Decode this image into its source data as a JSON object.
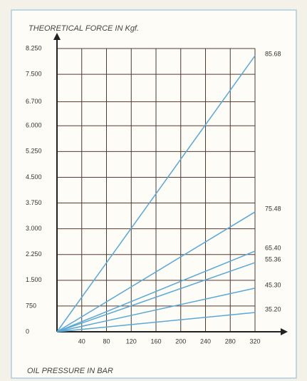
{
  "chart_data": {
    "type": "line",
    "title": "THEORETICAL FORCE IN Kgf.",
    "x_label": "OIL PRESSURE IN BAR",
    "x": [
      0,
      320
    ],
    "series": [
      {
        "name": "85.68",
        "color": "#5aa8d6",
        "values": [
          0,
          8040
        ]
      },
      {
        "name": "75.48",
        "color": "#5aa8d6",
        "values": [
          0,
          3490
        ]
      },
      {
        "name": "65.40",
        "color": "#5aa8d6",
        "values": [
          0,
          2350
        ]
      },
      {
        "name": "55.36",
        "color": "#5aa8d6",
        "values": [
          0,
          2015
        ]
      },
      {
        "name": "45.30",
        "color": "#5aa8d6",
        "values": [
          0,
          1270
        ]
      },
      {
        "name": "35.20",
        "color": "#5aa8d6",
        "values": [
          0,
          560
        ]
      }
    ],
    "xlim": [
      0,
      320
    ],
    "xticks": [
      40,
      80,
      120,
      160,
      200,
      240,
      280,
      320
    ],
    "ylim": [
      0,
      8250
    ],
    "yticks": [
      0,
      750,
      {
        "value": 1500,
        "label": "1.500"
      },
      {
        "value": 2250,
        "label": "2.250"
      },
      {
        "value": 3000,
        "label": "3.000"
      },
      {
        "value": 3750,
        "label": "3.750"
      },
      {
        "value": 4500,
        "label": "4.500"
      },
      {
        "value": 5250,
        "label": "5.250"
      },
      {
        "value": 6000,
        "label": "6.000"
      },
      {
        "value": 6700,
        "label": "6.700"
      },
      {
        "value": 7500,
        "label": "7.500"
      },
      {
        "value": 8250,
        "label": "8.250"
      }
    ],
    "grid": true
  }
}
